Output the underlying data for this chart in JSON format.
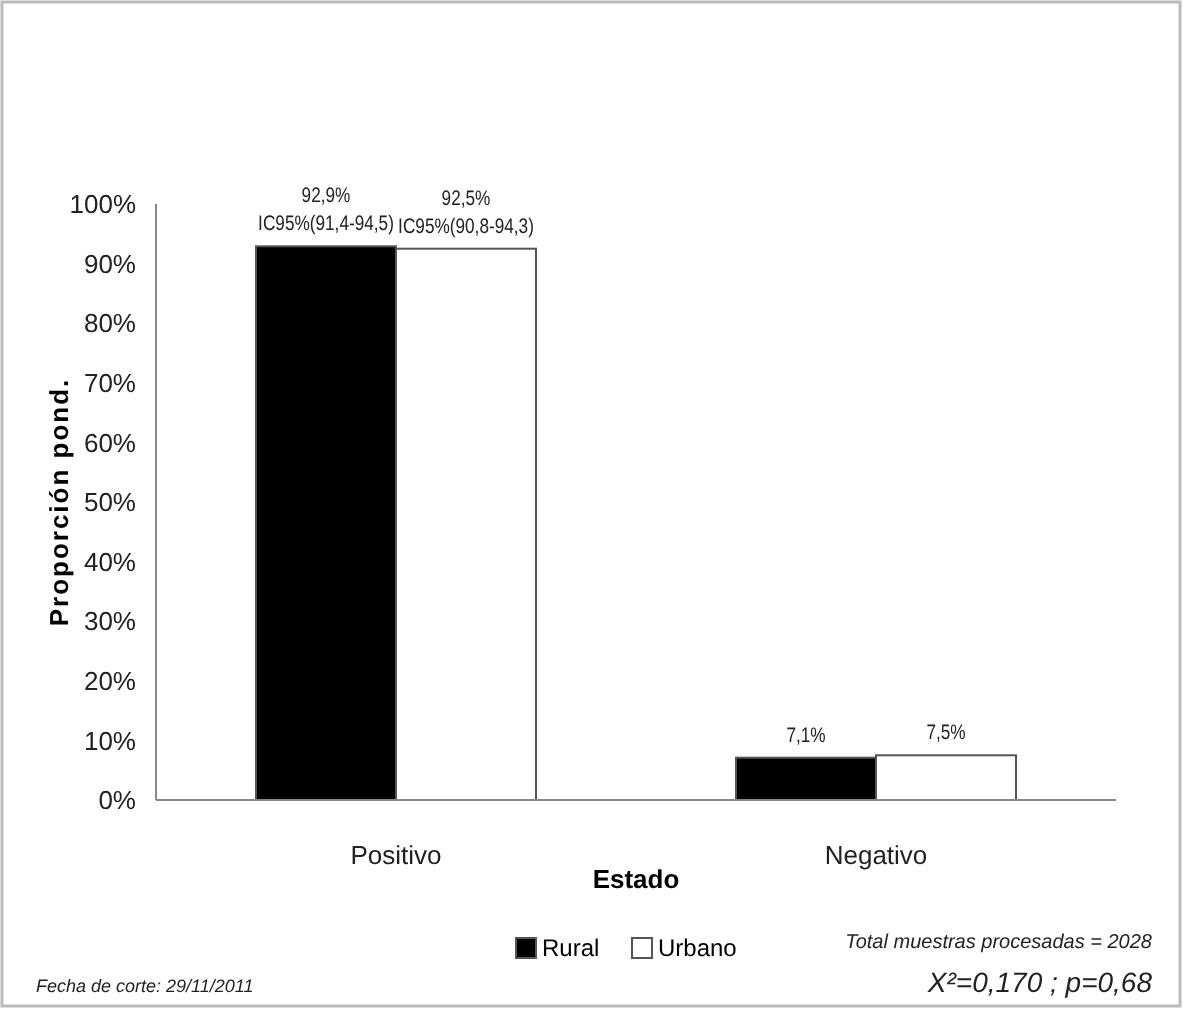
{
  "chart_data": {
    "type": "bar",
    "xlabel": "Estado",
    "ylabel": "Proporción pond.",
    "categories": [
      "Positivo",
      "Negativo"
    ],
    "series": [
      {
        "name": "Rural",
        "color": "#000000",
        "values": [
          92.9,
          7.1
        ],
        "value_labels": [
          "92,9%\nIC95%(91,4-94,5)",
          "7,1%"
        ]
      },
      {
        "name": "Urbano",
        "color": "#ffffff",
        "values": [
          92.5,
          7.5
        ],
        "value_labels": [
          "92,5%\nIC95%(90,8-94,3)",
          "7,5%"
        ]
      }
    ],
    "ylim": [
      0,
      100
    ],
    "yticks": [
      {
        "value": 0,
        "label": "0%"
      },
      {
        "value": 10,
        "label": "10%"
      },
      {
        "value": 20,
        "label": "20%"
      },
      {
        "value": 30,
        "label": "30%"
      },
      {
        "value": 40,
        "label": "40%"
      },
      {
        "value": 50,
        "label": "50%"
      },
      {
        "value": 60,
        "label": "60%"
      },
      {
        "value": 70,
        "label": "70%"
      },
      {
        "value": 80,
        "label": "80%"
      },
      {
        "value": 90,
        "label": "90%"
      },
      {
        "value": 100,
        "label": "100%"
      }
    ],
    "grid": false,
    "legend": "bottom",
    "annotations": [
      "Fecha de corte: 29/11/2011",
      "Total muestras procesadas = 2028",
      "X²=0,170 ; p=0,68"
    ]
  }
}
